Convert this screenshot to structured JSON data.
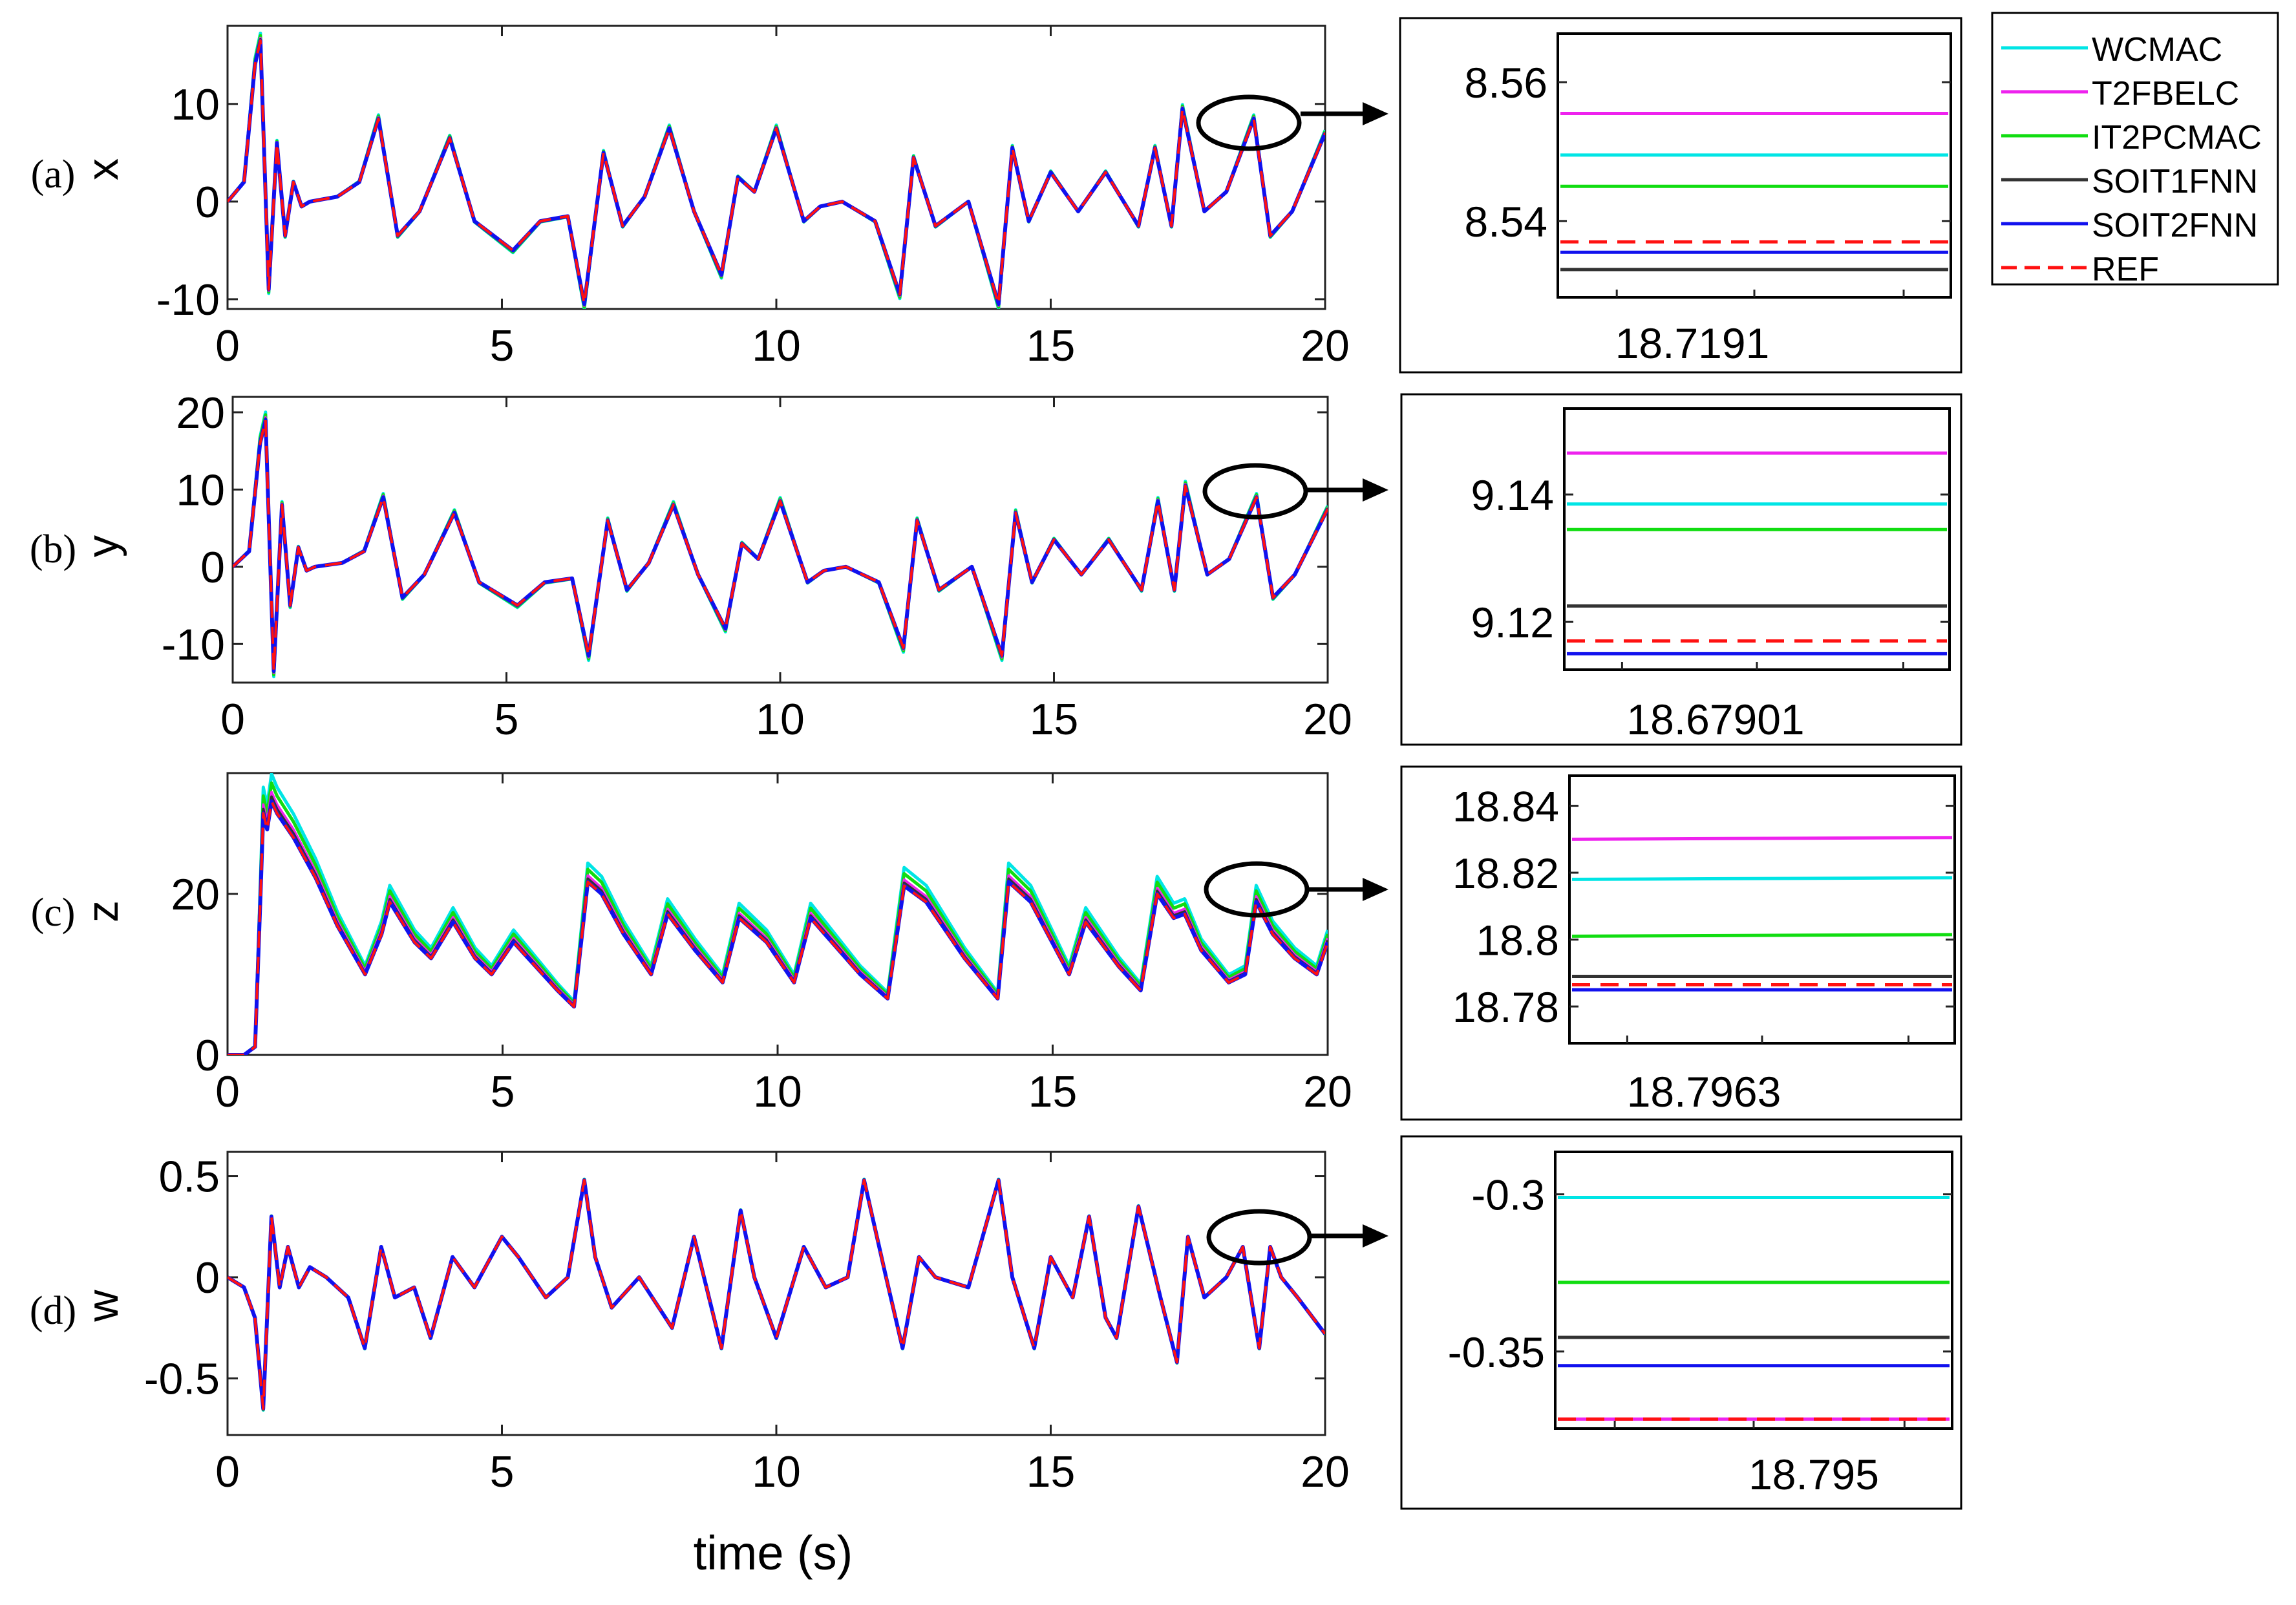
{
  "figure": {
    "xlabel": "time (s)",
    "panel_labels": [
      "(a)",
      "(b)",
      "(c)",
      "(d)"
    ],
    "colors": {
      "WCMAC": "#00e5e5",
      "T2FBELC": "#ee22ee",
      "IT2PCMAC": "#11dd11",
      "SOIT1FNN": "#333333",
      "SOIT2FNN": "#1111ee",
      "REF": "#ff1111"
    }
  },
  "legend": {
    "entries": [
      {
        "label": "WCMAC",
        "color": "#00e5e5",
        "style": "solid"
      },
      {
        "label": "T2FBELC",
        "color": "#ee22ee",
        "style": "solid"
      },
      {
        "label": "IT2PCMAC",
        "color": "#11dd11",
        "style": "solid"
      },
      {
        "label": "SOIT1FNN",
        "color": "#333333",
        "style": "solid"
      },
      {
        "label": "SOIT2FNN",
        "color": "#1111ee",
        "style": "solid"
      },
      {
        "label": "REF",
        "color": "#ff1111",
        "style": "dashed"
      }
    ]
  },
  "chart_data": [
    {
      "type": "line",
      "panel": "(a)",
      "title": "",
      "xlabel": "",
      "ylabel": "x",
      "xlim": [
        0,
        20
      ],
      "ylim": [
        -11,
        18
      ],
      "xticks": [
        0,
        5,
        10,
        15,
        20
      ],
      "yticks": [
        -10,
        0,
        10
      ],
      "series": [
        {
          "name": "REF",
          "x": [
            0,
            0.3,
            0.5,
            0.6,
            0.75,
            0.9,
            1.05,
            1.2,
            1.35,
            1.5,
            2.0,
            2.4,
            2.75,
            3.1,
            3.5,
            4.05,
            4.5,
            5.2,
            5.7,
            6.2,
            6.5,
            6.85,
            7.2,
            7.6,
            8.05,
            8.5,
            9.0,
            9.3,
            9.6,
            10.0,
            10.5,
            10.8,
            11.2,
            11.8,
            12.25,
            12.5,
            12.9,
            13.5,
            14.05,
            14.3,
            14.6,
            15.0,
            15.5,
            16.0,
            16.6,
            16.9,
            17.2,
            17.4,
            17.8,
            18.2,
            18.7,
            19.0,
            19.4,
            20.0
          ],
          "y": [
            0,
            2,
            14,
            16.5,
            -9,
            6,
            -3.5,
            2,
            -0.5,
            0,
            0.5,
            2,
            8.5,
            -3.5,
            -1,
            6.5,
            -2,
            -5,
            -2,
            -1.5,
            -10.5,
            5,
            -2.5,
            0.5,
            7.5,
            -1,
            -7.5,
            2.5,
            1,
            7.5,
            -2,
            -0.5,
            0,
            -2,
            -9.5,
            4.5,
            -2.5,
            0,
            -10.5,
            5.5,
            -2,
            3,
            -1,
            3,
            -2.5,
            5.5,
            -2.5,
            9.5,
            -1,
            1,
            8.5,
            -3.5,
            -1,
            7
          ]
        }
      ]
    },
    {
      "type": "line",
      "panel": "(b)",
      "title": "",
      "xlabel": "",
      "ylabel": "y",
      "xlim": [
        0,
        20
      ],
      "ylim": [
        -15,
        22
      ],
      "xticks": [
        0,
        5,
        10,
        15,
        20
      ],
      "yticks": [
        -10,
        0,
        10,
        20
      ],
      "series": [
        {
          "name": "REF",
          "x": [
            0,
            0.3,
            0.5,
            0.6,
            0.75,
            0.9,
            1.05,
            1.2,
            1.35,
            1.5,
            2.0,
            2.4,
            2.75,
            3.1,
            3.5,
            4.05,
            4.5,
            5.2,
            5.7,
            6.2,
            6.5,
            6.85,
            7.2,
            7.6,
            8.05,
            8.5,
            9.0,
            9.3,
            9.6,
            10.0,
            10.5,
            10.8,
            11.2,
            11.8,
            12.25,
            12.5,
            12.9,
            13.5,
            14.05,
            14.3,
            14.6,
            15.0,
            15.5,
            16.0,
            16.6,
            16.9,
            17.2,
            17.4,
            17.8,
            18.2,
            18.7,
            19.0,
            19.4,
            20.0
          ],
          "y": [
            0,
            2,
            16,
            19,
            -13.5,
            8,
            -5,
            2.5,
            -0.5,
            0,
            0.5,
            2,
            9,
            -4,
            -1,
            7,
            -2,
            -5,
            -2,
            -1.5,
            -11.5,
            6,
            -3,
            0.5,
            8,
            -1,
            -8,
            3,
            1,
            8.5,
            -2,
            -0.5,
            0,
            -2,
            -10.5,
            6,
            -3,
            0,
            -11.5,
            7,
            -2,
            3.5,
            -1,
            3.5,
            -3,
            8.5,
            -3,
            10.5,
            -1,
            1,
            9,
            -4,
            -1,
            7.5
          ]
        }
      ]
    },
    {
      "type": "line",
      "panel": "(c)",
      "title": "",
      "xlabel": "",
      "ylabel": "z",
      "xlim": [
        0,
        20
      ],
      "ylim": [
        0,
        35
      ],
      "xticks": [
        0,
        5,
        10,
        15,
        20
      ],
      "yticks": [
        0,
        20
      ],
      "series": [
        {
          "name": "REF",
          "x": [
            0,
            0.3,
            0.5,
            0.6,
            0.65,
            0.72,
            0.8,
            0.9,
            1.0,
            1.2,
            1.6,
            2.0,
            2.5,
            2.8,
            2.95,
            3.4,
            3.7,
            4.1,
            4.5,
            4.8,
            5.2,
            5.6,
            6.0,
            6.3,
            6.55,
            6.8,
            7.2,
            7.7,
            8.0,
            8.5,
            9.0,
            9.3,
            9.8,
            10.3,
            10.6,
            11.5,
            12.0,
            12.3,
            12.7,
            13.4,
            14.0,
            14.2,
            14.6,
            15.3,
            15.6,
            16.2,
            16.6,
            16.9,
            17.2,
            17.4,
            17.7,
            18.2,
            18.5,
            18.7,
            19.0,
            19.4,
            19.8,
            20.0
          ],
          "y": [
            0,
            0,
            1,
            20,
            30,
            28,
            31.5,
            30,
            29,
            27,
            22,
            16,
            10,
            15,
            19,
            14,
            12,
            16.5,
            12,
            10,
            14,
            11,
            8,
            6,
            21.5,
            20,
            15,
            10,
            17.5,
            13,
            9,
            17,
            14,
            9,
            17,
            10,
            7,
            21,
            19,
            12,
            7,
            21.5,
            19,
            10,
            16.5,
            11,
            8,
            20,
            17,
            17.5,
            13,
            9,
            10,
            19,
            15,
            12,
            10,
            14
          ]
        }
      ]
    },
    {
      "type": "line",
      "panel": "(d)",
      "title": "",
      "xlabel": "time (s)",
      "ylabel": "w",
      "xlim": [
        0,
        20
      ],
      "ylim": [
        -0.78,
        0.62
      ],
      "xticks": [
        0,
        5,
        10,
        15,
        20
      ],
      "yticks": [
        -0.5,
        0,
        0.5
      ],
      "series": [
        {
          "name": "REF",
          "x": [
            0,
            0.3,
            0.5,
            0.65,
            0.8,
            0.95,
            1.1,
            1.3,
            1.5,
            1.8,
            2.2,
            2.5,
            2.8,
            3.05,
            3.4,
            3.7,
            4.1,
            4.5,
            5.0,
            5.3,
            5.8,
            6.2,
            6.5,
            6.7,
            7.0,
            7.5,
            8.1,
            8.5,
            9.0,
            9.35,
            9.6,
            10.0,
            10.5,
            10.9,
            11.3,
            11.6,
            12.0,
            12.3,
            12.6,
            12.9,
            13.5,
            14.05,
            14.3,
            14.7,
            15.0,
            15.4,
            15.7,
            16.0,
            16.2,
            16.6,
            17.0,
            17.3,
            17.5,
            17.8,
            18.2,
            18.5,
            18.8,
            19.0,
            19.2,
            19.5,
            20.0
          ],
          "y": [
            0,
            -0.05,
            -0.2,
            -0.65,
            0.3,
            -0.05,
            0.15,
            -0.05,
            0.05,
            0,
            -0.1,
            -0.35,
            0.15,
            -0.1,
            -0.05,
            -0.3,
            0.1,
            -0.05,
            0.2,
            0.1,
            -0.1,
            0,
            0.48,
            0.1,
            -0.15,
            0,
            -0.25,
            0.2,
            -0.35,
            0.33,
            0,
            -0.3,
            0.15,
            -0.05,
            0,
            0.48,
            0,
            -0.35,
            0.1,
            0,
            -0.05,
            0.48,
            0,
            -0.35,
            0.1,
            -0.1,
            0.3,
            -0.2,
            -0.3,
            0.35,
            -0.1,
            -0.42,
            0.2,
            -0.1,
            0,
            0.15,
            -0.35,
            0.15,
            0,
            -0.1,
            -0.28
          ]
        }
      ]
    },
    {
      "type": "line",
      "panel": "(a) zoom",
      "title": "",
      "xlabel": "18.7191",
      "ylabel": "",
      "ylim": [
        8.529,
        8.567
      ],
      "yticks": [
        8.54,
        8.56
      ],
      "series": [
        {
          "name": "T2FBELC",
          "values": [
            8.5555,
            8.5555
          ]
        },
        {
          "name": "WCMAC",
          "values": [
            8.5495,
            8.5495
          ]
        },
        {
          "name": "IT2PCMAC",
          "values": [
            8.545,
            8.545
          ]
        },
        {
          "name": "REF",
          "values": [
            8.537,
            8.537
          ]
        },
        {
          "name": "SOIT2FNN",
          "values": [
            8.5355,
            8.5355
          ]
        },
        {
          "name": "SOIT1FNN",
          "values": [
            8.533,
            8.533
          ]
        }
      ]
    },
    {
      "type": "line",
      "panel": "(b) zoom",
      "title": "",
      "xlabel": "18.67901",
      "ylabel": "",
      "ylim": [
        9.1125,
        9.1535
      ],
      "yticks": [
        9.12,
        9.14
      ],
      "series": [
        {
          "name": "T2FBELC",
          "values": [
            9.1465,
            9.1465
          ]
        },
        {
          "name": "WCMAC",
          "values": [
            9.1385,
            9.1385
          ]
        },
        {
          "name": "IT2PCMAC",
          "values": [
            9.1345,
            9.1345
          ]
        },
        {
          "name": "SOIT1FNN",
          "values": [
            9.1225,
            9.1225
          ]
        },
        {
          "name": "REF",
          "values": [
            9.117,
            9.117
          ]
        },
        {
          "name": "SOIT2FNN",
          "values": [
            9.115,
            9.115
          ]
        }
      ]
    },
    {
      "type": "line",
      "panel": "(c) zoom",
      "title": "",
      "xlabel": "18.7963",
      "ylabel": "",
      "ylim": [
        18.769,
        18.849
      ],
      "yticks": [
        18.78,
        18.8,
        18.82,
        18.84
      ],
      "series": [
        {
          "name": "T2FBELC",
          "values": [
            18.83,
            18.8305
          ]
        },
        {
          "name": "WCMAC",
          "values": [
            18.818,
            18.8185
          ]
        },
        {
          "name": "IT2PCMAC",
          "values": [
            18.801,
            18.8015
          ]
        },
        {
          "name": "SOIT1FNN",
          "values": [
            18.789,
            18.789
          ]
        },
        {
          "name": "REF",
          "values": [
            18.7865,
            18.7865
          ]
        },
        {
          "name": "SOIT2FNN",
          "values": [
            18.785,
            18.785
          ]
        }
      ]
    },
    {
      "type": "line",
      "panel": "(d) zoom",
      "title": "",
      "xlabel": "18.795",
      "ylabel": "",
      "ylim": [
        -0.3745,
        -0.2865
      ],
      "yticks": [
        -0.35,
        -0.3
      ],
      "series": [
        {
          "name": "WCMAC",
          "values": [
            -0.301,
            -0.301
          ]
        },
        {
          "name": "IT2PCMAC",
          "values": [
            -0.328,
            -0.328
          ]
        },
        {
          "name": "SOIT1FNN",
          "values": [
            -0.3455,
            -0.3455
          ]
        },
        {
          "name": "SOIT2FNN",
          "values": [
            -0.3545,
            -0.3545
          ]
        },
        {
          "name": "T2FBELC",
          "values": [
            -0.3715,
            -0.3715
          ]
        },
        {
          "name": "REF",
          "values": [
            -0.3715,
            -0.3715
          ]
        }
      ]
    }
  ]
}
